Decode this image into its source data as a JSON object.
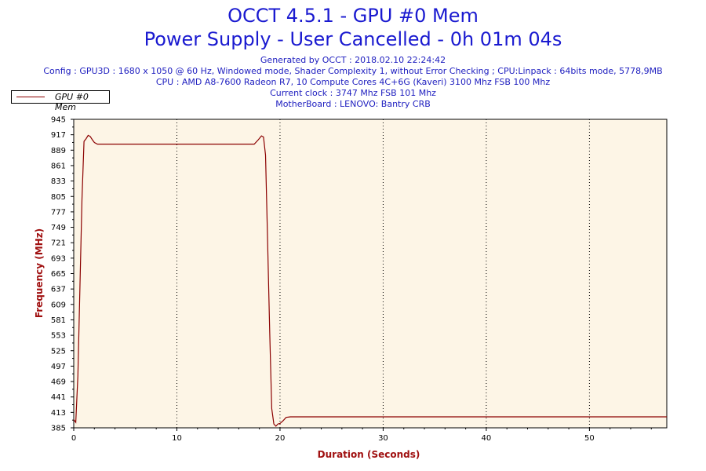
{
  "header": {
    "title_line1": "OCCT 4.5.1 - GPU #0 Mem",
    "title_line2": "Power Supply - User Cancelled - 0h 01m 04s",
    "generated": "Generated by OCCT : 2018.02.10 22:24:42",
    "config": "Config : GPU3D : 1680 x 1050 @ 60 Hz, Windowed mode, Shader Complexity 1, without Error Checking ; CPU:Linpack : 64bits mode, 5778,9MB",
    "cpu": "CPU : AMD A8-7600 Radeon R7, 10 Compute Cores 4C+6G (Kaveri) 3100 Mhz FSB 100 Mhz",
    "clock": "Current clock : 3747 Mhz FSB 101 Mhz",
    "motherboard": "MotherBoard : LENOVO: Bantry CRB"
  },
  "colors": {
    "title": "#1a1ad0",
    "info": "#2020c0",
    "plot_bg": "#fdf5e6",
    "line": "#8b0000",
    "axis_label": "#a01010"
  },
  "chart_data": {
    "type": "line",
    "xlabel": "Duration (Seconds)",
    "ylabel": "Frequency (MHz)",
    "xlim": [
      0,
      57.5
    ],
    "ylim": [
      385,
      945
    ],
    "x_ticks": [
      0,
      10,
      20,
      30,
      40,
      50
    ],
    "y_ticks": [
      385,
      413,
      441,
      469,
      497,
      525,
      553,
      581,
      609,
      637,
      665,
      693,
      721,
      749,
      777,
      805,
      833,
      861,
      889,
      917,
      945
    ],
    "grid": "vertical dotted",
    "legend": "top-left",
    "series": [
      {
        "name": "GPU #0 Mem",
        "x": [
          0,
          0.2,
          0.4,
          0.6,
          0.8,
          1.0,
          1.2,
          1.4,
          1.6,
          1.8,
          2.0,
          2.3,
          2.6,
          3,
          10,
          17.5,
          17.9,
          18.2,
          18.4,
          18.6,
          18.8,
          19.0,
          19.2,
          19.4,
          19.6,
          19.8,
          20.0,
          20.3,
          20.6,
          21,
          30,
          40,
          50,
          57.5
        ],
        "y": [
          400,
          395,
          480,
          640,
          800,
          905,
          910,
          916,
          914,
          908,
          903,
          900,
          900,
          900,
          900,
          900,
          908,
          915,
          913,
          880,
          720,
          560,
          420,
          392,
          388,
          392,
          393,
          398,
          404,
          405,
          405,
          405,
          405,
          405
        ]
      }
    ]
  }
}
